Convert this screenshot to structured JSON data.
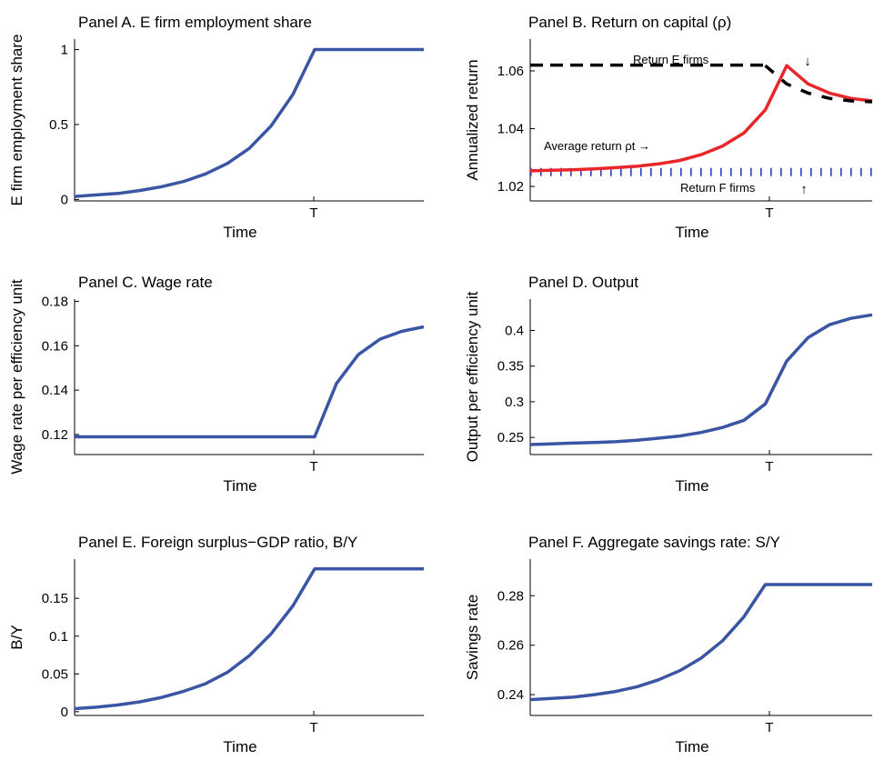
{
  "colors": {
    "line": "#3a55a4",
    "red": "#e8262a",
    "black": "#000000",
    "dashed_blue": "#2b3fbf"
  },
  "chart_data": [
    {
      "id": "A",
      "type": "line",
      "title": "Panel A. E firm employment share",
      "xlabel": "Time",
      "ylabel": "E firm employment share",
      "x_tick_labels": [
        "T"
      ],
      "xlim": [
        0,
        16
      ],
      "ylim": [
        -0.01,
        1.07
      ],
      "yticks": [
        0,
        0.5,
        1
      ],
      "ytick_labels": [
        "0",
        "0.5",
        "1"
      ],
      "series": [
        {
          "x": [
            0,
            1,
            2,
            3,
            4,
            5,
            6,
            7,
            8,
            9,
            10,
            11,
            12,
            13,
            14,
            15,
            16
          ],
          "values": [
            0.02,
            0.03,
            0.04,
            0.06,
            0.085,
            0.12,
            0.17,
            0.24,
            0.34,
            0.49,
            0.7,
            1.0,
            1.0,
            1.0,
            1.0,
            1.0,
            1.0
          ]
        }
      ]
    },
    {
      "id": "B",
      "type": "line",
      "title": "Panel B. Return on capital (ρ)",
      "xlabel": "Time",
      "ylabel": "Annualized return",
      "x_tick_labels": [
        "T"
      ],
      "xlim": [
        0,
        16
      ],
      "ylim": [
        1.015,
        1.071
      ],
      "yticks": [
        1.02,
        1.04,
        1.06
      ],
      "ytick_labels": [
        "1.02",
        "1.04",
        "1.06"
      ],
      "series": [
        {
          "name": "Return E firms",
          "style": "dashed-black",
          "x": [
            0,
            11
          ],
          "values": [
            1.062,
            1.062
          ]
        },
        {
          "name": "Return F firms",
          "style": "dashed-blue",
          "x": [
            0,
            16
          ],
          "values": [
            1.025,
            1.025
          ]
        },
        {
          "name": "Average return",
          "style": "red",
          "x": [
            0,
            1,
            2,
            3,
            4,
            5,
            6,
            7,
            8,
            9,
            10,
            11,
            12,
            13,
            14,
            15,
            16
          ],
          "values": [
            1.0254,
            1.0256,
            1.0258,
            1.0261,
            1.0265,
            1.027,
            1.0278,
            1.029,
            1.031,
            1.034,
            1.0385,
            1.0465,
            1.0618,
            1.0555,
            1.0523,
            1.0505,
            1.0496
          ]
        },
        {
          "name": "Return E firms (after T)",
          "style": "dashed-black-overlay",
          "x": [
            11,
            12,
            13,
            14,
            15,
            16
          ],
          "values": [
            1.0618,
            1.0555,
            1.0523,
            1.0505,
            1.0496,
            1.0493
          ]
        }
      ],
      "annotations": [
        {
          "text": "Return E firms",
          "arrow": "↓"
        },
        {
          "text": "Average return ρt →"
        },
        {
          "text": "Return F firms",
          "arrow": "↑"
        }
      ]
    },
    {
      "id": "C",
      "type": "line",
      "title": "Panel C. Wage rate",
      "xlabel": "Time",
      "ylabel": "Wage rate per efficiency unit",
      "x_tick_labels": [
        "T"
      ],
      "xlim": [
        0,
        16
      ],
      "ylim": [
        0.111,
        0.181
      ],
      "yticks": [
        0.12,
        0.14,
        0.16,
        0.18
      ],
      "ytick_labels": [
        "0.12",
        "0.14",
        "0.16",
        "0.18"
      ],
      "series": [
        {
          "x": [
            0,
            1,
            2,
            3,
            4,
            5,
            6,
            7,
            8,
            9,
            10,
            11,
            12,
            13,
            14,
            15,
            16
          ],
          "values": [
            0.119,
            0.119,
            0.119,
            0.119,
            0.119,
            0.119,
            0.119,
            0.119,
            0.119,
            0.119,
            0.119,
            0.119,
            0.143,
            0.156,
            0.163,
            0.1665,
            0.1685
          ]
        }
      ]
    },
    {
      "id": "D",
      "type": "line",
      "title": "Panel D. Output",
      "xlabel": "Time",
      "ylabel": "Output per efficiency unit",
      "x_tick_labels": [
        "T"
      ],
      "xlim": [
        0,
        16
      ],
      "ylim": [
        0.226,
        0.444
      ],
      "yticks": [
        0.25,
        0.3,
        0.35,
        0.4
      ],
      "ytick_labels": [
        "0.25",
        "0.3",
        "0.35",
        "0.4"
      ],
      "series": [
        {
          "x": [
            0,
            1,
            2,
            3,
            4,
            5,
            6,
            7,
            8,
            9,
            10,
            11,
            12,
            13,
            14,
            15,
            16
          ],
          "values": [
            0.24,
            0.241,
            0.242,
            0.243,
            0.244,
            0.246,
            0.249,
            0.252,
            0.257,
            0.264,
            0.274,
            0.297,
            0.357,
            0.39,
            0.408,
            0.417,
            0.422
          ]
        }
      ]
    },
    {
      "id": "E",
      "type": "line",
      "title": "Panel E. Foreign surplus−GDP ratio, B/Y",
      "xlabel": "Time",
      "ylabel": "B/Y",
      "x_tick_labels": [
        "T"
      ],
      "xlim": [
        0,
        16
      ],
      "ylim": [
        -0.005,
        0.202
      ],
      "yticks": [
        0,
        0.05,
        0.1,
        0.15
      ],
      "ytick_labels": [
        "0",
        "0.05",
        "0.1",
        "0.15"
      ],
      "series": [
        {
          "x": [
            0,
            1,
            2,
            3,
            4,
            5,
            6,
            7,
            8,
            9,
            10,
            11,
            12,
            13,
            14,
            15,
            16
          ],
          "values": [
            0.004,
            0.006,
            0.009,
            0.013,
            0.019,
            0.027,
            0.037,
            0.052,
            0.074,
            0.103,
            0.14,
            0.189,
            0.189,
            0.189,
            0.189,
            0.189,
            0.189
          ]
        }
      ]
    },
    {
      "id": "F",
      "type": "line",
      "title": "Panel F. Aggregate savings rate: S/Y",
      "xlabel": "Time",
      "ylabel": "Savings rate",
      "x_tick_labels": [
        "T"
      ],
      "xlim": [
        0,
        16
      ],
      "ylim": [
        0.2316,
        0.2948
      ],
      "yticks": [
        0.24,
        0.26,
        0.28
      ],
      "ytick_labels": [
        "0.24",
        "0.26",
        "0.28"
      ],
      "series": [
        {
          "x": [
            0,
            1,
            2,
            3,
            4,
            5,
            6,
            7,
            8,
            9,
            10,
            11,
            12,
            13,
            14,
            15,
            16
          ],
          "values": [
            0.238,
            0.2385,
            0.239,
            0.24,
            0.2413,
            0.2432,
            0.246,
            0.2497,
            0.2548,
            0.2618,
            0.2715,
            0.2845,
            0.2845,
            0.2845,
            0.2845,
            0.2845,
            0.2845
          ]
        }
      ]
    }
  ]
}
